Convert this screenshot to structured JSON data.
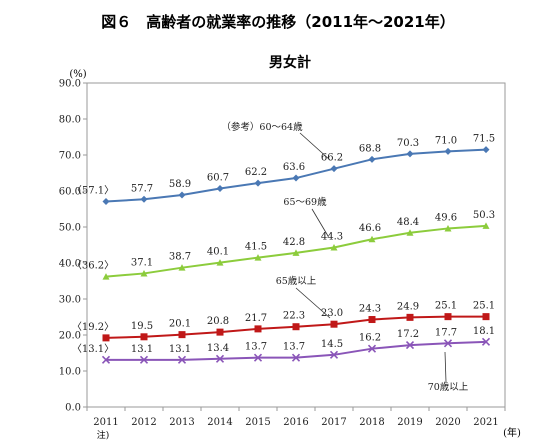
{
  "chart_data": {
    "type": "line",
    "title": "図６　高齢者の就業率の推移（2011年～2021年）",
    "subtitle": "男女計",
    "ylabel": "(%)",
    "xlabel": "(年)",
    "x_note": "注)",
    "ylim": [
      0,
      90
    ],
    "yticks": [
      "0.0",
      "10.0",
      "20.0",
      "30.0",
      "40.0",
      "50.0",
      "60.0",
      "70.0",
      "80.0",
      "90.0"
    ],
    "x": [
      "2011",
      "2012",
      "2013",
      "2014",
      "2015",
      "2016",
      "2017",
      "2018",
      "2019",
      "2020",
      "2021"
    ],
    "grid": false,
    "series": [
      {
        "name": "（参考）60～64歳",
        "color": "#4a78b4",
        "marker": "diamond",
        "values": [
          57.1,
          57.7,
          58.9,
          60.7,
          62.2,
          63.6,
          66.2,
          68.8,
          70.3,
          71.0,
          71.5
        ],
        "labels": [
          "〈57.1〉",
          "57.7",
          "58.9",
          "60.7",
          "62.2",
          "63.6",
          "66.2",
          "68.8",
          "70.3",
          "71.0",
          "71.5"
        ]
      },
      {
        "name": "65～69歳",
        "color": "#8ccc3c",
        "marker": "triangle",
        "values": [
          36.2,
          37.1,
          38.7,
          40.1,
          41.5,
          42.8,
          44.3,
          46.6,
          48.4,
          49.6,
          50.3
        ],
        "labels": [
          "〈36.2〉",
          "37.1",
          "38.7",
          "40.1",
          "41.5",
          "42.8",
          "44.3",
          "46.6",
          "48.4",
          "49.6",
          "50.3"
        ]
      },
      {
        "name": "65歳以上",
        "color": "#c01818",
        "marker": "square",
        "values": [
          19.2,
          19.5,
          20.1,
          20.8,
          21.7,
          22.3,
          23.0,
          24.3,
          24.9,
          25.1,
          25.1
        ],
        "labels": [
          "〈19.2〉",
          "19.5",
          "20.1",
          "20.8",
          "21.7",
          "22.3",
          "23.0",
          "24.3",
          "24.9",
          "25.1",
          "25.1"
        ]
      },
      {
        "name": "70歳以上",
        "color": "#8a55b8",
        "marker": "cross",
        "values": [
          13.1,
          13.1,
          13.1,
          13.4,
          13.7,
          13.7,
          14.5,
          16.2,
          17.2,
          17.7,
          18.1
        ],
        "labels": [
          "〈13.1〉",
          "13.1",
          "13.1",
          "13.4",
          "13.7",
          "13.7",
          "14.5",
          "16.2",
          "17.2",
          "17.7",
          "18.1"
        ]
      }
    ]
  }
}
